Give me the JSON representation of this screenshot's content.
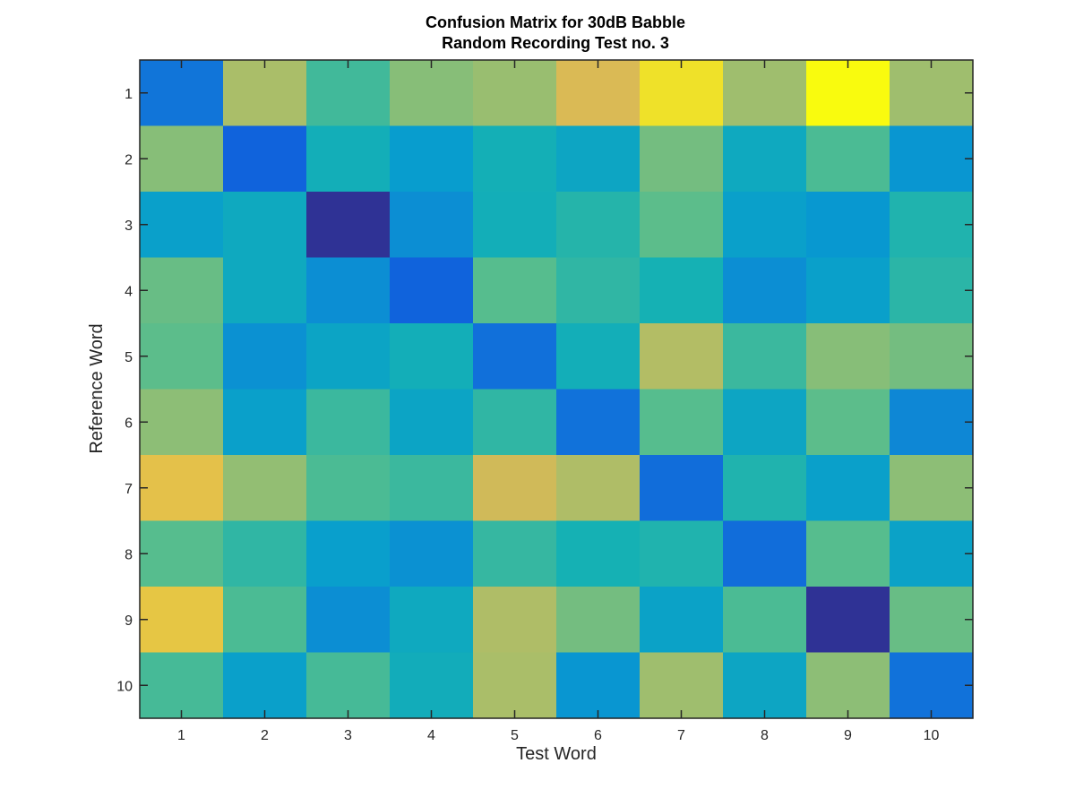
{
  "chart_data": {
    "type": "heatmap",
    "title_lines": [
      "Confusion Matrix for 30dB Babble",
      "Random Recording Test no. 3"
    ],
    "xlabel": "Test Word",
    "ylabel": "Reference Word",
    "x_categories": [
      "1",
      "2",
      "3",
      "4",
      "5",
      "6",
      "7",
      "8",
      "9",
      "10"
    ],
    "y_categories": [
      "1",
      "2",
      "3",
      "4",
      "5",
      "6",
      "7",
      "8",
      "9",
      "10"
    ],
    "colormap": "parula",
    "value_range": [
      0,
      1
    ],
    "grid": false,
    "values": [
      [
        0.22,
        0.76,
        0.58,
        0.7,
        0.73,
        0.86,
        0.95,
        0.74,
        1.0,
        0.74
      ],
      [
        0.7,
        0.15,
        0.48,
        0.38,
        0.49,
        0.43,
        0.67,
        0.45,
        0.6,
        0.35
      ],
      [
        0.4,
        0.45,
        0.02,
        0.32,
        0.48,
        0.53,
        0.63,
        0.4,
        0.36,
        0.52
      ],
      [
        0.65,
        0.45,
        0.32,
        0.15,
        0.62,
        0.55,
        0.5,
        0.32,
        0.4,
        0.54
      ],
      [
        0.63,
        0.33,
        0.42,
        0.48,
        0.2,
        0.48,
        0.78,
        0.57,
        0.7,
        0.67
      ],
      [
        0.71,
        0.4,
        0.57,
        0.42,
        0.55,
        0.21,
        0.62,
        0.43,
        0.63,
        0.29
      ],
      [
        0.89,
        0.72,
        0.6,
        0.57,
        0.84,
        0.77,
        0.19,
        0.52,
        0.4,
        0.71
      ],
      [
        0.62,
        0.55,
        0.39,
        0.33,
        0.56,
        0.5,
        0.52,
        0.19,
        0.62,
        0.41
      ],
      [
        0.9,
        0.6,
        0.32,
        0.45,
        0.77,
        0.67,
        0.41,
        0.6,
        0.02,
        0.65
      ],
      [
        0.59,
        0.4,
        0.59,
        0.47,
        0.76,
        0.35,
        0.74,
        0.43,
        0.71,
        0.21
      ]
    ]
  }
}
